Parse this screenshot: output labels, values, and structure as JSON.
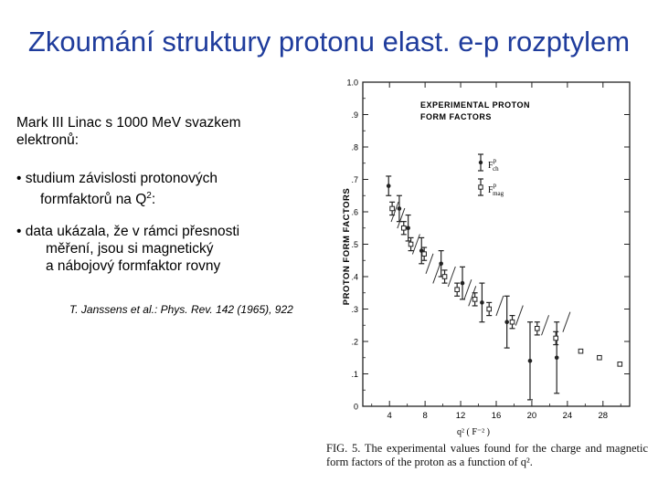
{
  "slide": {
    "title": "Zkoumání struktury protonu elast. e-p rozptylem",
    "intro_line1": "Mark III Linac  s 1000 MeV svazkem",
    "intro_line2": "elektronů:",
    "bullet1_line1": "• studium závislosti protonových",
    "bullet1_line2": "formfaktorů na Q",
    "bullet1_sup": "2",
    "bullet1_tail": ":",
    "bullet2_line1": "• data ukázala, že v rámci přesnosti",
    "bullet2_line2": "měření, jsou  si magnetický",
    "bullet2_line3": "a nábojový formfaktor rovny",
    "citation": "T. Janssens et al.: Phys. Rev. 142 (1965), 922"
  },
  "figure": {
    "caption": "FIG. 5. The experimental values found for the charge and magnetic form factors of the proton as a function of q².",
    "legend_title_line1": "EXPERIMENTAL  PROTON",
    "legend_title_line2": "FORM  FACTORS",
    "legend_charge": "F",
    "legend_charge_sup": "p",
    "legend_charge_sub": "ch",
    "legend_mag": "F",
    "legend_mag_sup": "p",
    "legend_mag_sub": "mag",
    "ylabel": "PROTON   FORM   FACTORS",
    "xlabel": "q² ( F⁻² )"
  },
  "chart_data": {
    "type": "scatter",
    "xlabel": "q² ( F⁻² )",
    "ylabel": "PROTON FORM FACTORS",
    "xlim": [
      1,
      31
    ],
    "ylim": [
      0,
      1.0
    ],
    "x_ticks": [
      4,
      8,
      12,
      16,
      20,
      24,
      28
    ],
    "y_ticks": [
      0,
      0.1,
      0.2,
      0.3,
      0.4,
      0.5,
      0.6,
      0.7,
      0.8,
      0.9,
      1.0
    ],
    "y_tick_labels": [
      "0",
      ".1",
      ".2",
      ".3",
      ".4",
      ".5",
      ".6",
      ".7",
      ".8",
      ".9",
      "1.0"
    ],
    "grid": false,
    "legend": "top-right",
    "series": [
      {
        "name": "F_ch^p",
        "marker": "filled-dot",
        "points": [
          {
            "x": 3.9,
            "y": 0.68,
            "err": 0.03
          },
          {
            "x": 5.1,
            "y": 0.61,
            "err": 0.04
          },
          {
            "x": 6.1,
            "y": 0.55,
            "err": 0.04
          },
          {
            "x": 7.6,
            "y": 0.48,
            "err": 0.04
          },
          {
            "x": 9.8,
            "y": 0.44,
            "err": 0.04
          },
          {
            "x": 12.2,
            "y": 0.38,
            "err": 0.05
          },
          {
            "x": 14.4,
            "y": 0.32,
            "err": 0.06
          },
          {
            "x": 17.2,
            "y": 0.26,
            "err": 0.08
          },
          {
            "x": 19.8,
            "y": 0.14,
            "err": 0.12
          },
          {
            "x": 22.8,
            "y": 0.15,
            "err": 0.11
          }
        ]
      },
      {
        "name": "F_mag^p",
        "marker": "open-square",
        "points": [
          {
            "x": 4.3,
            "y": 0.61,
            "err": 0.02
          },
          {
            "x": 5.6,
            "y": 0.55,
            "err": 0.02
          },
          {
            "x": 6.4,
            "y": 0.5,
            "err": 0.02
          },
          {
            "x": 7.9,
            "y": 0.47,
            "err": 0.02
          },
          {
            "x": 10.2,
            "y": 0.4,
            "err": 0.02
          },
          {
            "x": 11.6,
            "y": 0.36,
            "err": 0.02
          },
          {
            "x": 13.6,
            "y": 0.33,
            "err": 0.02
          },
          {
            "x": 15.2,
            "y": 0.3,
            "err": 0.02
          },
          {
            "x": 17.8,
            "y": 0.26,
            "err": 0.02
          },
          {
            "x": 20.6,
            "y": 0.24,
            "err": 0.02
          },
          {
            "x": 22.7,
            "y": 0.21,
            "err": 0.02
          },
          {
            "x": 25.5,
            "y": 0.17,
            "err": 0.0
          },
          {
            "x": 27.6,
            "y": 0.15,
            "err": 0.0
          },
          {
            "x": 29.9,
            "y": 0.13,
            "err": 0.0
          }
        ]
      }
    ],
    "hand_drawn_slashes": [
      {
        "x": 4.6,
        "y": 0.6
      },
      {
        "x": 5.3,
        "y": 0.58
      },
      {
        "x": 7.0,
        "y": 0.5
      },
      {
        "x": 8.5,
        "y": 0.44
      },
      {
        "x": 9.3,
        "y": 0.41
      },
      {
        "x": 11.0,
        "y": 0.4
      },
      {
        "x": 12.8,
        "y": 0.36
      },
      {
        "x": 13.3,
        "y": 0.34
      },
      {
        "x": 16.4,
        "y": 0.31
      },
      {
        "x": 18.6,
        "y": 0.28
      },
      {
        "x": 21.5,
        "y": 0.25
      },
      {
        "x": 23.9,
        "y": 0.26
      }
    ]
  }
}
